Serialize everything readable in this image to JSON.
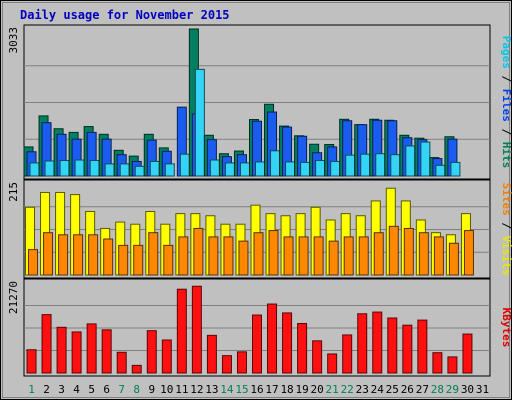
{
  "chart_data": {
    "type": "bar",
    "title": "Daily usage for November 2015",
    "days": [
      "1",
      "2",
      "3",
      "4",
      "5",
      "6",
      "7",
      "8",
      "9",
      "10",
      "11",
      "12",
      "13",
      "14",
      "15",
      "16",
      "17",
      "18",
      "19",
      "20",
      "21",
      "22",
      "23",
      "24",
      "25",
      "26",
      "27",
      "28",
      "29",
      "30",
      "31"
    ],
    "weekend_days": [
      "1",
      "7",
      "8",
      "14",
      "15",
      "21",
      "22",
      "28",
      "29"
    ],
    "panels": [
      {
        "id": "hits",
        "max_label": "3033",
        "ymax": 3033,
        "ylabel_parts": [
          {
            "text": "Pages",
            "color": "#00c8e8"
          },
          {
            "text": " / ",
            "color": "#000000"
          },
          {
            "text": "Files",
            "color": "#0040f0"
          },
          {
            "text": " / ",
            "color": "#000000"
          },
          {
            "text": "Hits",
            "color": "#00805a"
          }
        ],
        "series": [
          {
            "name": "Hits",
            "color": "#008060",
            "values": [
              600,
              1240,
              975,
              900,
              1020,
              860,
              530,
              410,
              860,
              580,
              null,
              3033,
              840,
              460,
              515,
              1165,
              1480,
              1030,
              830,
              655,
              650,
              1170,
              1060,
              1170,
              1150,
              840,
              780,
              380,
              810,
              null,
              null
            ]
          },
          {
            "name": "Files",
            "color": "#1a5cf0",
            "values": [
              500,
              1100,
              860,
              760,
              900,
              760,
              440,
              300,
              740,
              510,
              1420,
              1280,
              750,
              400,
              440,
              1130,
              1320,
              1010,
              820,
              480,
              600,
              1140,
              1060,
              1150,
              1140,
              790,
              750,
              360,
              760,
              null,
              null
            ]
          },
          {
            "name": "Pages",
            "color": "#33d4f5",
            "values": [
              270,
              310,
              320,
              330,
              320,
              250,
              250,
              200,
              300,
              250,
              450,
              2200,
              330,
              270,
              270,
              290,
              520,
              290,
              280,
              320,
              300,
              430,
              450,
              460,
              440,
              620,
              700,
              220,
              280,
              null,
              null
            ]
          }
        ]
      },
      {
        "id": "visits",
        "max_label": "215",
        "ymax": 215,
        "ylabel_parts": [
          {
            "text": "Sites",
            "color": "#f08000"
          },
          {
            "text": " / ",
            "color": "#000000"
          },
          {
            "text": "Visits",
            "color": "#e8e800"
          }
        ],
        "series": [
          {
            "name": "Visits",
            "color": "#ffff00",
            "values": [
              160,
              195,
              195,
              190,
              150,
              110,
              125,
              120,
              150,
              120,
              145,
              145,
              140,
              120,
              120,
              165,
              145,
              140,
              145,
              160,
              130,
              145,
              140,
              175,
              205,
              175,
              130,
              100,
              95,
              145,
              null
            ]
          },
          {
            "name": "Sites",
            "color": "#ff8800",
            "values": [
              60,
              100,
              95,
              95,
              95,
              85,
              70,
              70,
              100,
              70,
              90,
              110,
              90,
              90,
              80,
              100,
              105,
              90,
              90,
              90,
              80,
              90,
              90,
              100,
              115,
              110,
              100,
              90,
              75,
              105,
              null
            ]
          }
        ]
      },
      {
        "id": "kbytes",
        "max_label": "21270",
        "ymax": 21270,
        "ylabel_parts": [
          {
            "text": "KBytes",
            "color": "#e00000"
          }
        ],
        "series": [
          {
            "name": "KBytes",
            "color": "#ff1010",
            "values": [
              5500,
              13800,
              10800,
              9700,
              11600,
              10200,
              4900,
              1800,
              10000,
              7800,
              19800,
              20500,
              8900,
              4100,
              5000,
              13700,
              16300,
              14200,
              11700,
              7600,
              4500,
              9000,
              14000,
              14400,
              13000,
              11300,
              12500,
              4800,
              3800,
              9200,
              null
            ]
          }
        ]
      }
    ]
  }
}
